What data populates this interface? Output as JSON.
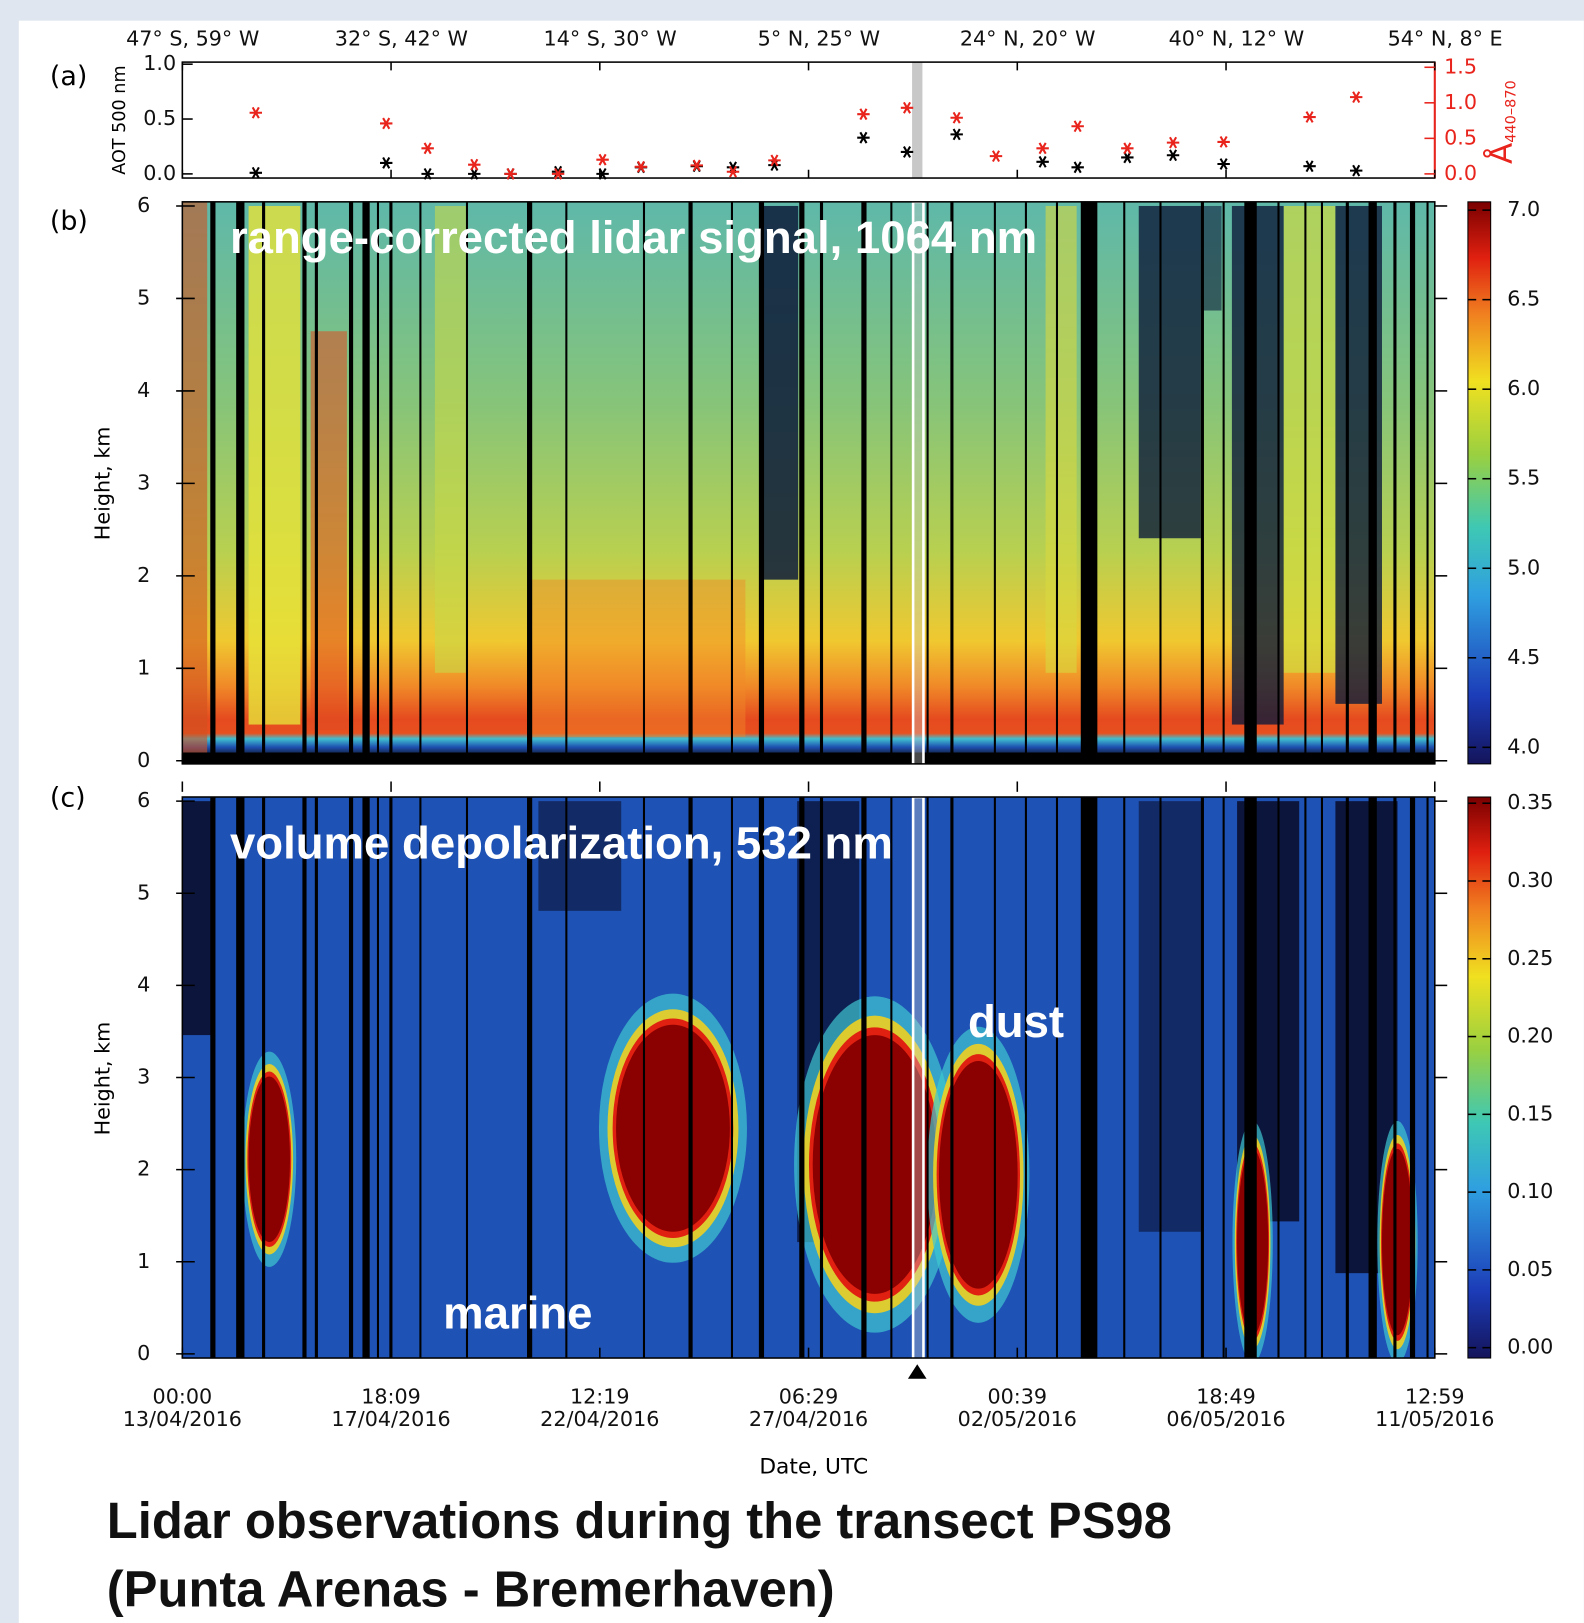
{
  "title": [
    "Lidar observations during the transect PS98",
    "(Punta Arenas - Bremerhaven)"
  ],
  "chart_data": [
    {
      "type": "scatter",
      "panel": "(a)",
      "ylabel": "AOT 500 nm",
      "y2label": "Å",
      "y2label_sub": "440–870",
      "xlim": [
        "2016-04-13T00:00",
        "2016-05-11T12:59"
      ],
      "xticks": [
        {
          "value": "2016-04-13T00:00",
          "label": "47° S, 59° W"
        },
        {
          "value": "2016-04-17T18:09",
          "label": "32° S, 42° W"
        },
        {
          "value": "2016-04-22T12:19",
          "label": "14° S, 30° W"
        },
        {
          "value": "2016-04-27T06:29",
          "label": "5° N, 25° W"
        },
        {
          "value": "2016-05-02T00:39",
          "label": "24° N, 20° W"
        },
        {
          "value": "2016-05-06T18:49",
          "label": "40° N, 12° W"
        },
        {
          "value": "2016-05-11T12:59",
          "label": "54° N, 8° E"
        }
      ],
      "ylim": [
        0,
        1.0
      ],
      "yticks": [
        {
          "value": 0,
          "label": "0.0"
        },
        {
          "value": 0.5,
          "label": "0.5"
        },
        {
          "value": 1,
          "label": "1.0"
        }
      ],
      "y2lim": [
        0,
        1.5
      ],
      "y2ticks": [
        {
          "value": 0,
          "label": "0.0"
        },
        {
          "value": 0.5,
          "label": "0.5"
        },
        {
          "value": 1,
          "label": "1.0"
        },
        {
          "value": 1.5,
          "label": "1.5"
        }
      ],
      "y2color": "#e8241c",
      "series": [
        {
          "color": "#000000",
          "axis": "y",
          "x": [
            "2016-04-14T16:10",
            "2016-04-17T15:30",
            "2016-04-18T14:10",
            "2016-04-19T15:40",
            "2016-04-20T11:30",
            "2016-04-21T13:30",
            "2016-04-22T13:50",
            "2016-04-23T10:50",
            "2016-04-24T17:20",
            "2016-04-25T13:10",
            "2016-04-26T11:50",
            "2016-04-28T12:30",
            "2016-04-29T12:20",
            "2016-04-30T15:30",
            "2016-05-02T14:30",
            "2016-05-03T09:40",
            "2016-05-04T12:50",
            "2016-05-05T13:50",
            "2016-05-06T17:30",
            "2016-05-08T16:30",
            "2016-05-09T18:00"
          ],
          "values": [
            0.01,
            0.1,
            0.0,
            0.0,
            0.0,
            0.02,
            0.0,
            0.06,
            0.07,
            0.06,
            0.08,
            0.33,
            0.2,
            0.36,
            0.11,
            0.06,
            0.15,
            0.17,
            0.09,
            0.07,
            0.03
          ]
        },
        {
          "color": "#e8241c",
          "axis": "y2",
          "x": [
            "2016-04-14T16:10",
            "2016-04-17T15:30",
            "2016-04-18T14:10",
            "2016-04-19T15:40",
            "2016-04-20T11:30",
            "2016-04-21T13:30",
            "2016-04-22T13:50",
            "2016-04-23T10:50",
            "2016-04-24T17:20",
            "2016-04-25T13:10",
            "2016-04-26T11:50",
            "2016-04-28T12:30",
            "2016-04-29T12:20",
            "2016-04-30T15:30",
            "2016-05-01T13:00",
            "2016-05-02T14:30",
            "2016-05-03T09:40",
            "2016-05-04T12:50",
            "2016-05-05T13:50",
            "2016-05-06T17:30",
            "2016-05-08T16:30",
            "2016-05-09T18:00"
          ],
          "values": [
            0.86,
            0.71,
            0.36,
            0.13,
            0.0,
            0.0,
            0.2,
            0.1,
            0.12,
            0.03,
            0.19,
            0.84,
            0.93,
            0.79,
            0.25,
            0.36,
            0.67,
            0.36,
            0.44,
            0.45,
            0.8,
            1.08
          ]
        }
      ]
    },
    {
      "type": "heatmap",
      "panel": "(b)",
      "annotation": "range-corrected lidar signal, 1064 nm",
      "ylabel": "Height, km",
      "xlim": [
        "2016-04-13T00:00",
        "2016-05-11T12:59"
      ],
      "ylim": [
        0,
        6
      ],
      "yticks": [
        0,
        1,
        2,
        3,
        4,
        5,
        6
      ],
      "zlim": [
        4.0,
        7.0
      ],
      "zticks": [
        {
          "value": 4.0,
          "label": "4.0"
        },
        {
          "value": 4.5,
          "label": "4.5"
        },
        {
          "value": 5.0,
          "label": "5.0"
        },
        {
          "value": 5.5,
          "label": "5.5"
        },
        {
          "value": 6.0,
          "label": "6.0"
        },
        {
          "value": 6.5,
          "label": "6.5"
        },
        {
          "value": 7.0,
          "label": "7.0"
        }
      ]
    },
    {
      "type": "heatmap",
      "panel": "(c)",
      "annotation": "volume depolarization, 532 nm",
      "ylabel": "Height, km",
      "xlabel": "Date, UTC",
      "annotations": [
        "dust",
        "marine"
      ],
      "xlim": [
        "2016-04-13T00:00",
        "2016-05-11T12:59"
      ],
      "xticks": [
        {
          "value": "2016-04-13T00:00",
          "label": "00:00 13/04/2016"
        },
        {
          "value": "2016-04-17T18:09",
          "label": "18:09 17/04/2016"
        },
        {
          "value": "2016-04-22T12:19",
          "label": "12:19 22/04/2016"
        },
        {
          "value": "2016-04-27T06:29",
          "label": "06:29 27/04/2016"
        },
        {
          "value": "2016-05-02T00:39",
          "label": "00:39 02/05/2016"
        },
        {
          "value": "2016-05-06T18:49",
          "label": "18:49 06/05/2016"
        },
        {
          "value": "2016-05-11T12:59",
          "label": "12:59 11/05/2016"
        }
      ],
      "ylim": [
        0,
        6
      ],
      "yticks": [
        0,
        1,
        2,
        3,
        4,
        5,
        6
      ],
      "zlim": [
        0,
        0.35
      ],
      "zticks": [
        {
          "value": 0,
          "label": "0.00"
        },
        {
          "value": 0.05,
          "label": "0.05"
        },
        {
          "value": 0.1,
          "label": "0.10"
        },
        {
          "value": 0.15,
          "label": "0.15"
        },
        {
          "value": 0.2,
          "label": "0.20"
        },
        {
          "value": 0.25,
          "label": "0.25"
        },
        {
          "value": 0.3,
          "label": "0.30"
        },
        {
          "value": 0.35,
          "label": "0.35"
        }
      ]
    }
  ]
}
